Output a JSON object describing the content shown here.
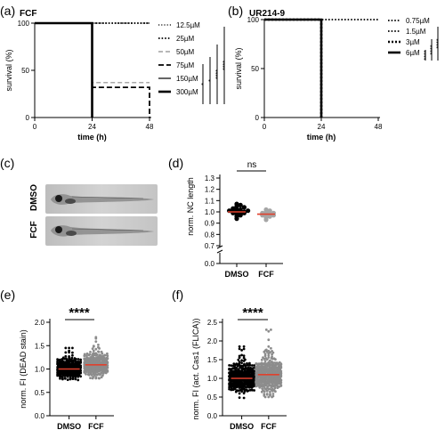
{
  "panel_labels": [
    "(a)",
    "(b)",
    "(c)",
    "(d)",
    "(e)",
    "(f)"
  ],
  "colors": {
    "black": "#000000",
    "gray": "#8c8c8c",
    "light_gray": "#a6a6a6",
    "red": "#e0402c"
  },
  "chart_data": [
    {
      "id": "a",
      "type": "line",
      "title": "FCF",
      "xlabel": "time (h)",
      "ylabel": "survival (%)",
      "x_ticks": [
        "0",
        "24",
        "48"
      ],
      "y_ticks": [
        "0",
        "50",
        "100"
      ],
      "xlim": [
        0,
        48
      ],
      "ylim": [
        0,
        100
      ],
      "series": [
        {
          "name": "12.5µM",
          "style": "dotted-fine",
          "color": "#000000",
          "points": [
            [
              0,
              100
            ],
            [
              48,
              100
            ]
          ]
        },
        {
          "name": "25µM",
          "style": "dotted",
          "color": "#000000",
          "points": [
            [
              0,
              100
            ],
            [
              48,
              100
            ]
          ]
        },
        {
          "name": "50µM",
          "style": "dashed-fine",
          "color": "#8c8c8c",
          "points": [
            [
              0,
              100
            ],
            [
              24,
              100
            ],
            [
              24,
              37
            ],
            [
              48,
              37
            ]
          ]
        },
        {
          "name": "75µM",
          "style": "dashed",
          "color": "#000000",
          "points": [
            [
              0,
              100
            ],
            [
              24,
              100
            ],
            [
              24,
              32
            ],
            [
              48,
              32
            ],
            [
              48,
              0
            ]
          ]
        },
        {
          "name": "150µM",
          "style": "solid",
          "color": "#000000",
          "points": [
            [
              0,
              100
            ],
            [
              24,
              100
            ],
            [
              24,
              0
            ]
          ]
        },
        {
          "name": "300µM",
          "style": "solid-thick",
          "color": "#000000",
          "points": [
            [
              0,
              100
            ],
            [
              24,
              100
            ],
            [
              24,
              0
            ]
          ]
        }
      ],
      "significance": [
        "*",
        "*",
        "****",
        "****"
      ]
    },
    {
      "id": "b",
      "type": "line",
      "title": "UR214-9",
      "xlabel": "time (h)",
      "ylabel": "survival (%)",
      "x_ticks": [
        "0",
        "24",
        "48"
      ],
      "y_ticks": [
        "0",
        "50",
        "100"
      ],
      "xlim": [
        0,
        48
      ],
      "ylim": [
        0,
        100
      ],
      "series": [
        {
          "name": "0.75µM",
          "style": "dotted",
          "color": "#000000",
          "points": [
            [
              0,
              100
            ],
            [
              48,
              100
            ]
          ]
        },
        {
          "name": "1.5µM",
          "style": "dotted",
          "color": "#000000",
          "points": [
            [
              0,
              100
            ],
            [
              24,
              100
            ],
            [
              24,
              0
            ]
          ]
        },
        {
          "name": "3µM",
          "style": "dotted-heavy",
          "color": "#000000",
          "points": [
            [
              0,
              100
            ],
            [
              24,
              100
            ],
            [
              24,
              0
            ]
          ]
        },
        {
          "name": "6µM",
          "style": "solid-thick",
          "color": "#000000",
          "points": [
            [
              0,
              100
            ],
            [
              24,
              100
            ],
            [
              24,
              0
            ]
          ]
        }
      ],
      "significance": [
        "****",
        "****",
        "****"
      ]
    },
    {
      "id": "d",
      "type": "scatter",
      "xlabel": "",
      "ylabel": "norm. NC length",
      "categories": [
        "DMSO",
        "FCF"
      ],
      "y_ticks": [
        "0.0",
        "0.7",
        "0.8",
        "0.9",
        "1.0",
        "1.1",
        "1.2",
        "1.3"
      ],
      "ylim": [
        0.7,
        1.3
      ],
      "axis_break": true,
      "series": [
        {
          "category": "DMSO",
          "color": "#000000",
          "mean": 1.0,
          "values": [
            0.94,
            0.96,
            0.97,
            0.98,
            0.98,
            0.99,
            0.99,
            1.0,
            1.0,
            1.0,
            1.0,
            1.01,
            1.01,
            1.02,
            1.02,
            1.03,
            1.04,
            1.05,
            1.06,
            1.07
          ]
        },
        {
          "category": "FCF",
          "color": "#a6a6a6",
          "mean": 0.98,
          "values": [
            0.93,
            0.95,
            0.96,
            0.97,
            0.97,
            0.98,
            0.98,
            0.99,
            0.99,
            1.0,
            1.01,
            1.02
          ]
        }
      ],
      "significance": "ns"
    },
    {
      "id": "e",
      "type": "scatter",
      "xlabel": "",
      "ylabel": "norm. FI (DEAD stain)",
      "categories": [
        "DMSO",
        "FCF"
      ],
      "y_ticks": [
        "0.0",
        "0.5",
        "1.0",
        "1.5",
        "2.0"
      ],
      "ylim": [
        0,
        2.0
      ],
      "series": [
        {
          "category": "DMSO",
          "color": "#000000",
          "mean": 1.0,
          "n": 360,
          "center": 1.0,
          "spread": 0.09,
          "min": 0.72,
          "max": 1.45
        },
        {
          "category": "FCF",
          "color": "#8c8c8c",
          "mean": 1.09,
          "n": 380,
          "center": 1.07,
          "spread": 0.11,
          "min": 0.8,
          "max": 1.72
        }
      ],
      "significance": "****"
    },
    {
      "id": "f",
      "type": "scatter",
      "xlabel": "",
      "ylabel": "norm. FI (act. Cas1 (FLICA))",
      "categories": [
        "DMSO",
        "FCF"
      ],
      "y_ticks": [
        "0.0",
        "0.5",
        "1.0",
        "1.5",
        "2.0",
        "2.5"
      ],
      "ylim": [
        0,
        2.5
      ],
      "series": [
        {
          "category": "DMSO",
          "color": "#000000",
          "mean": 1.0,
          "n": 420,
          "center": 0.98,
          "spread": 0.17,
          "min": 0.45,
          "max": 1.85
        },
        {
          "category": "FCF",
          "color": "#8c8c8c",
          "mean": 1.1,
          "n": 440,
          "center": 1.06,
          "spread": 0.2,
          "min": 0.5,
          "max": 2.3
        }
      ],
      "significance": "****"
    }
  ],
  "image_panel": {
    "rows": [
      "DMSO",
      "FCF"
    ]
  }
}
